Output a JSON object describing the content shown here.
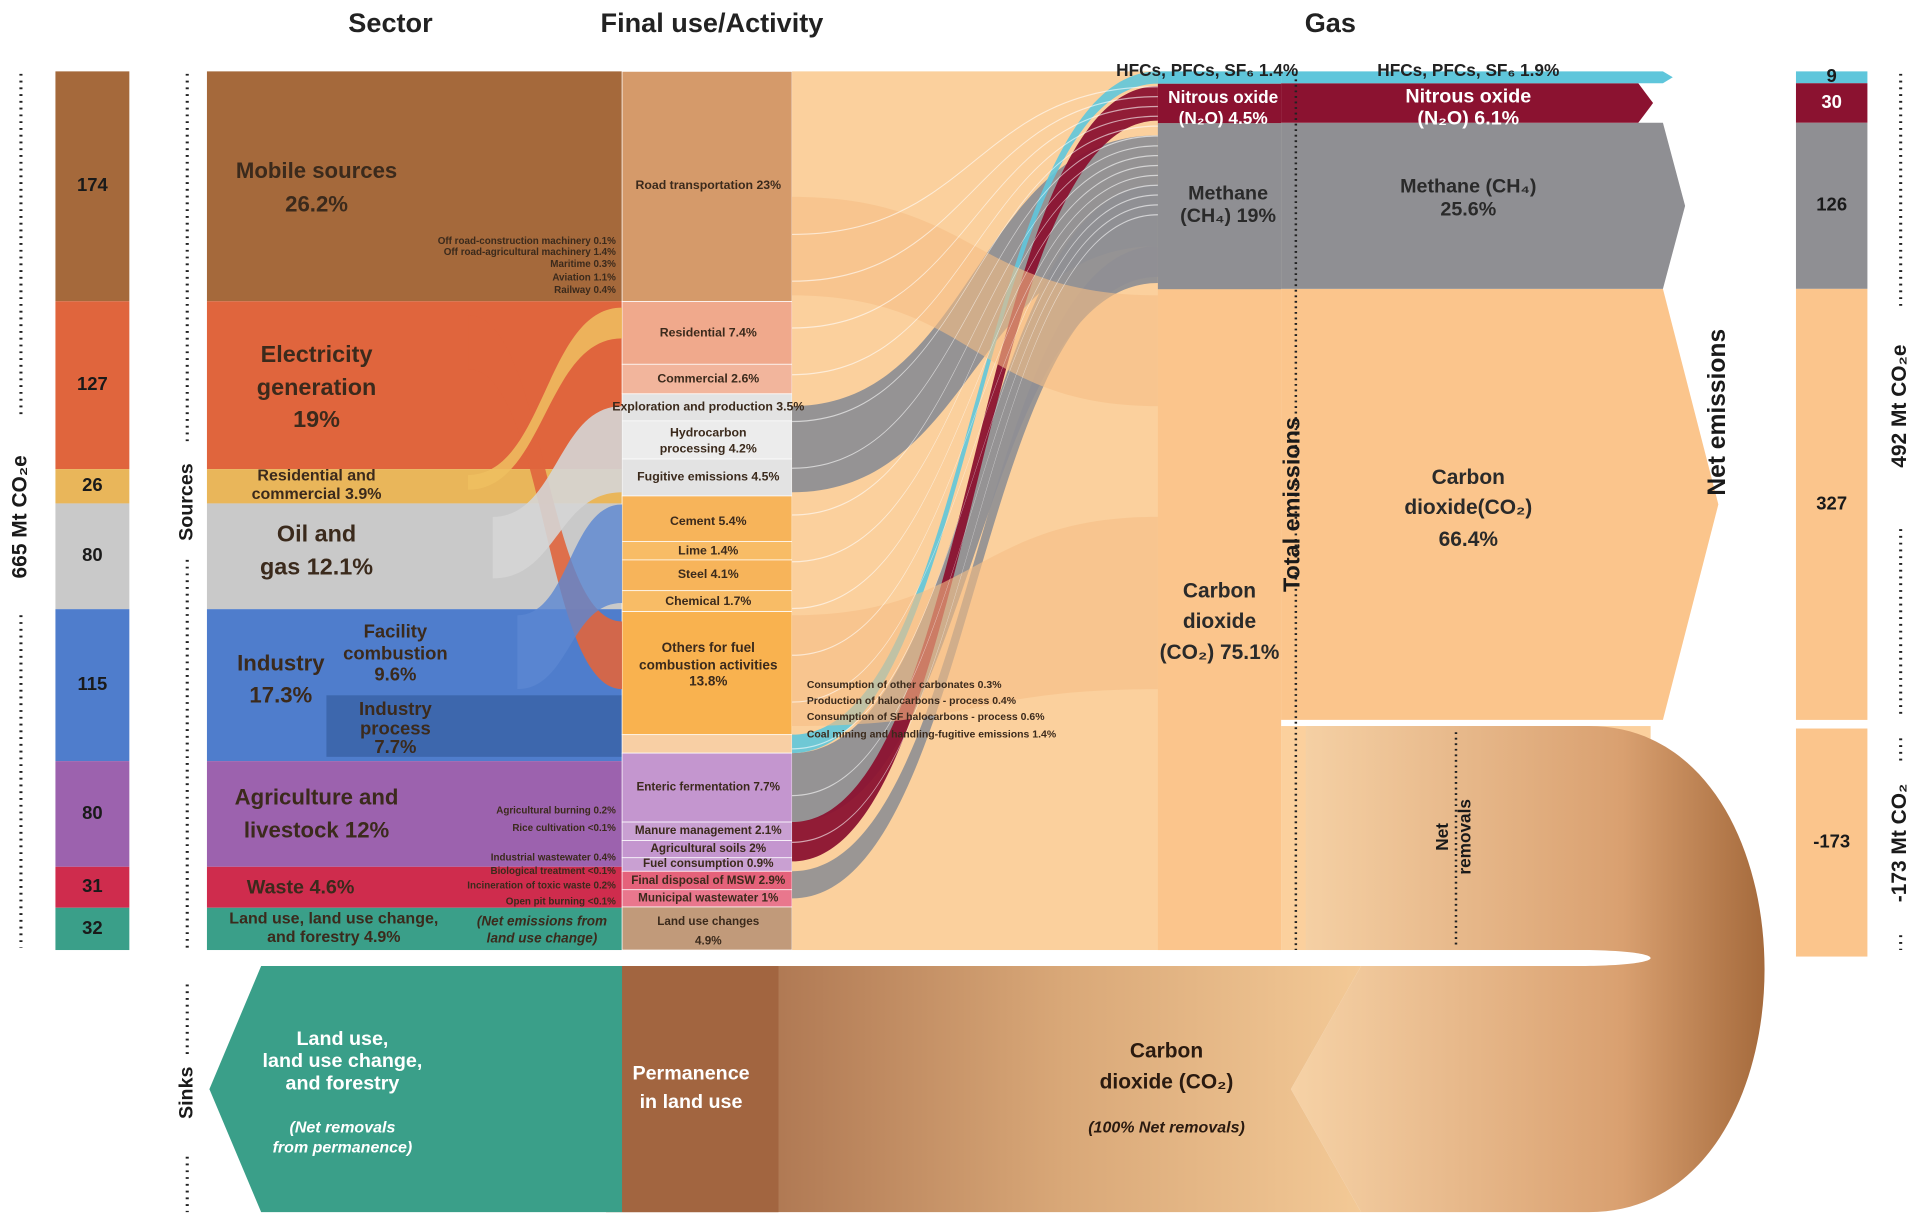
{
  "headers": [
    "Sector",
    "Final use/Activity",
    "Gas"
  ],
  "left_bar": {
    "label": "665 Mt CO₂e",
    "values": [
      174,
      127,
      26,
      80,
      115,
      80,
      31,
      32
    ]
  },
  "side_labels": {
    "sources": "Sources",
    "sinks": "Sinks"
  },
  "sectors": [
    {
      "lines": [
        "Mobile sources",
        "26.2%"
      ]
    },
    {
      "lines": [
        "Electricity",
        "generation",
        "19%"
      ]
    },
    {
      "lines": [
        "Residential and",
        "commercial 3.9%"
      ]
    },
    {
      "lines": [
        "Oil and",
        "gas 12.1%"
      ]
    },
    {
      "lines": [
        "Industry",
        "17.3%"
      ]
    },
    {
      "lines": [
        "Facility",
        "combustion",
        "9.6%"
      ]
    },
    {
      "lines": [
        "Industry",
        "process",
        "7.7%"
      ]
    },
    {
      "lines": [
        "Agriculture and",
        "livestock 12%"
      ]
    },
    {
      "lines": [
        "Waste 4.6%"
      ]
    },
    {
      "lines": [
        "Land use, land use change,",
        "and forestry 4.9%"
      ]
    },
    {
      "lines": [
        "(Net emissions from",
        "land use change)"
      ]
    }
  ],
  "subsectors": [
    "Off road-construction machinery 0.1%",
    "Off road-agricultural machinery 1.4%",
    "Maritime 0.3%",
    "Aviation 1.1%",
    "Railway 0.4%",
    "Agricultural burning 0.2%",
    "Rice cultivation <0.1%",
    "Industrial wastewater 0.4%",
    "Biological treatment <0.1%",
    "Incineration of toxic waste 0.2%",
    "Open pit burning <0.1%"
  ],
  "activities": [
    {
      "lines": [
        "Road transportation 23%"
      ]
    },
    {
      "lines": [
        "Residential 7.4%"
      ]
    },
    {
      "lines": [
        "Commercial 2.6%"
      ]
    },
    {
      "lines": [
        "Exploration and production 3.5%"
      ]
    },
    {
      "lines": [
        "Hydrocarbon",
        "processing 4.2%"
      ]
    },
    {
      "lines": [
        "Fugitive emissions 4.5%"
      ]
    },
    {
      "lines": [
        "Cement 5.4%"
      ]
    },
    {
      "lines": [
        "Lime 1.4%"
      ]
    },
    {
      "lines": [
        "Steel 4.1%"
      ]
    },
    {
      "lines": [
        "Chemical 1.7%"
      ]
    },
    {
      "lines": [
        "Others for fuel",
        "combustion activities",
        "13.8%"
      ]
    },
    {
      "lines": [
        "Consumption of other carbonates 0.3%"
      ]
    },
    {
      "lines": [
        "Production of halocarbons - process 0.4%"
      ]
    },
    {
      "lines": [
        "Consumption of SF halocarbons - process 0.6%"
      ]
    },
    {
      "lines": [
        "Coal mining and handling-fugitive emissions 1.4%"
      ]
    },
    {
      "lines": [
        "Enteric fermentation 7.7%"
      ]
    },
    {
      "lines": [
        "Manure management 2.1%"
      ]
    },
    {
      "lines": [
        "Agricultural soils 2%"
      ]
    },
    {
      "lines": [
        "Fuel consumption 0.9%"
      ]
    },
    {
      "lines": [
        "Final disposal of MSW 2.9%"
      ]
    },
    {
      "lines": [
        "Municipal wastewater 1%"
      ]
    },
    {
      "lines": [
        "Land use changes",
        "4.9%"
      ]
    }
  ],
  "gases_total": {
    "items": [
      {
        "lines": [
          "HFCs, PFCs, SF₆ 1.4%"
        ]
      },
      {
        "lines": [
          "Nitrous oxide",
          "(N₂O) 4.5%"
        ]
      },
      {
        "lines": [
          "Methane",
          "(CH₄) 19%"
        ]
      },
      {
        "lines": [
          "Carbon",
          "dioxide",
          "(CO₂) 75.1%"
        ]
      }
    ],
    "label": "Total emissions"
  },
  "gases_net": {
    "items": [
      {
        "lines": [
          "HFCs, PFCs, SF₆ 1.9%"
        ]
      },
      {
        "lines": [
          "Nitrous oxide",
          "(N₂O) 6.1%"
        ]
      },
      {
        "lines": [
          "Methane (CH₄)",
          "25.6%"
        ]
      },
      {
        "lines": [
          "Carbon",
          "dioxide(CO₂)",
          "66.4%"
        ]
      }
    ],
    "label": "Net emissions",
    "removals": {
      "lines": [
        "Net",
        "removals"
      ]
    }
  },
  "right_bar": {
    "values": [
      9,
      30,
      126,
      327
    ],
    "removal_value": -173,
    "emissions_label": "492 Mt CO₂e",
    "removals_label": "-173 Mt CO₂"
  },
  "sinks": {
    "lulucf": {
      "lines": [
        "Land use,",
        "land use change,",
        "and forestry"
      ]
    },
    "lulucf_note": {
      "lines": [
        "(Net removals",
        "from permanence)"
      ]
    },
    "permanence": {
      "lines": [
        "Permanence",
        "in land use"
      ]
    },
    "co2": {
      "lines": [
        "Carbon",
        "dioxide (CO₂)"
      ]
    },
    "co2_note": "(100% Net removals)"
  }
}
